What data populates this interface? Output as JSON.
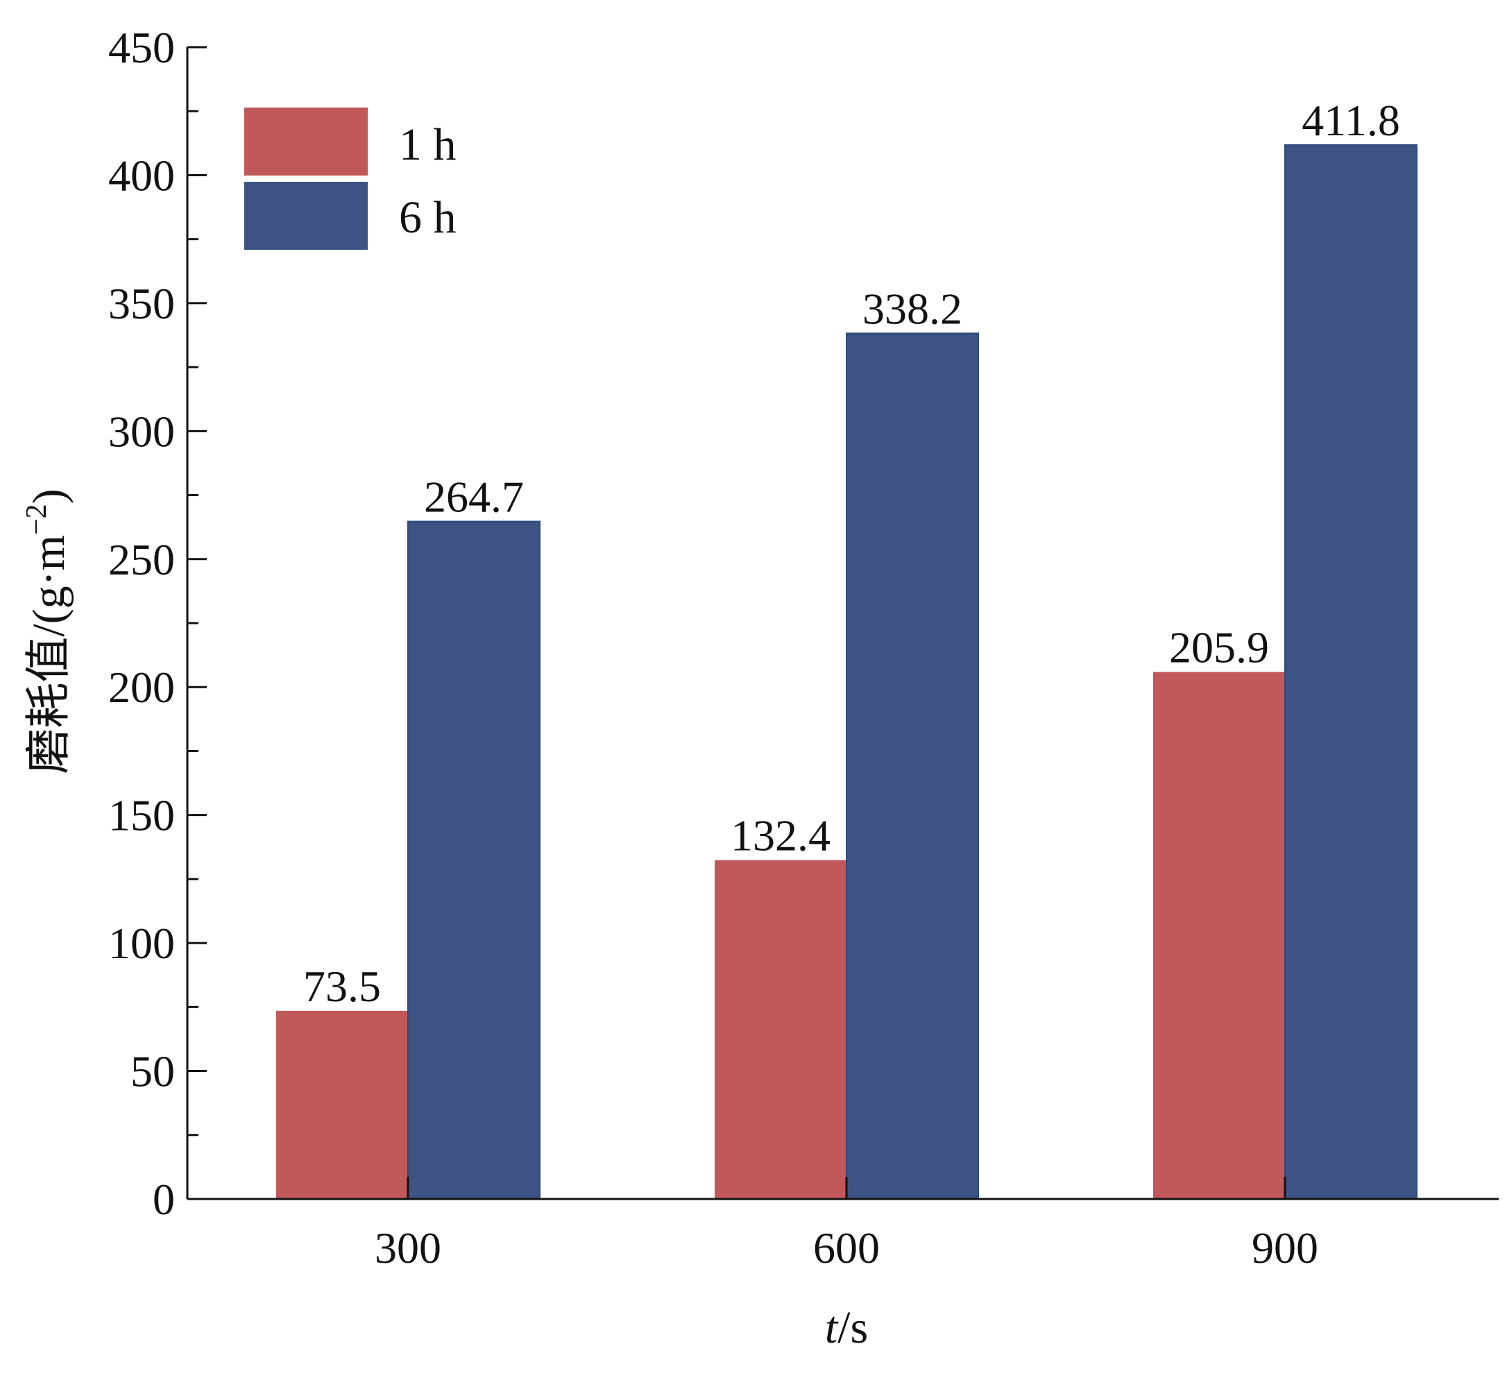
{
  "chart_data": {
    "type": "bar",
    "categories": [
      "300",
      "600",
      "900"
    ],
    "series": [
      {
        "name": "1 h",
        "values": [
          73.5,
          132.4,
          205.9
        ],
        "color": "#c1585a"
      },
      {
        "name": "6 h",
        "values": [
          264.7,
          338.2,
          411.8
        ],
        "color": "#3d5384"
      }
    ],
    "data_labels": [
      [
        "73.5",
        "132.4",
        "205.9"
      ],
      [
        "264.7",
        "338.2",
        "411.8"
      ]
    ],
    "xlabel": {
      "italic": "t",
      "rest": "/s"
    },
    "ylabel": {
      "chinese": "磨耗值",
      "unit_open": "/(g·m",
      "unit_sup": "−2",
      "unit_close": ")"
    },
    "ylim": [
      0,
      450
    ],
    "yticks": [
      "0",
      "50",
      "100",
      "150",
      "200",
      "250",
      "300",
      "350",
      "400",
      "450"
    ],
    "grid": false,
    "legend": {
      "position": "top-left"
    }
  }
}
